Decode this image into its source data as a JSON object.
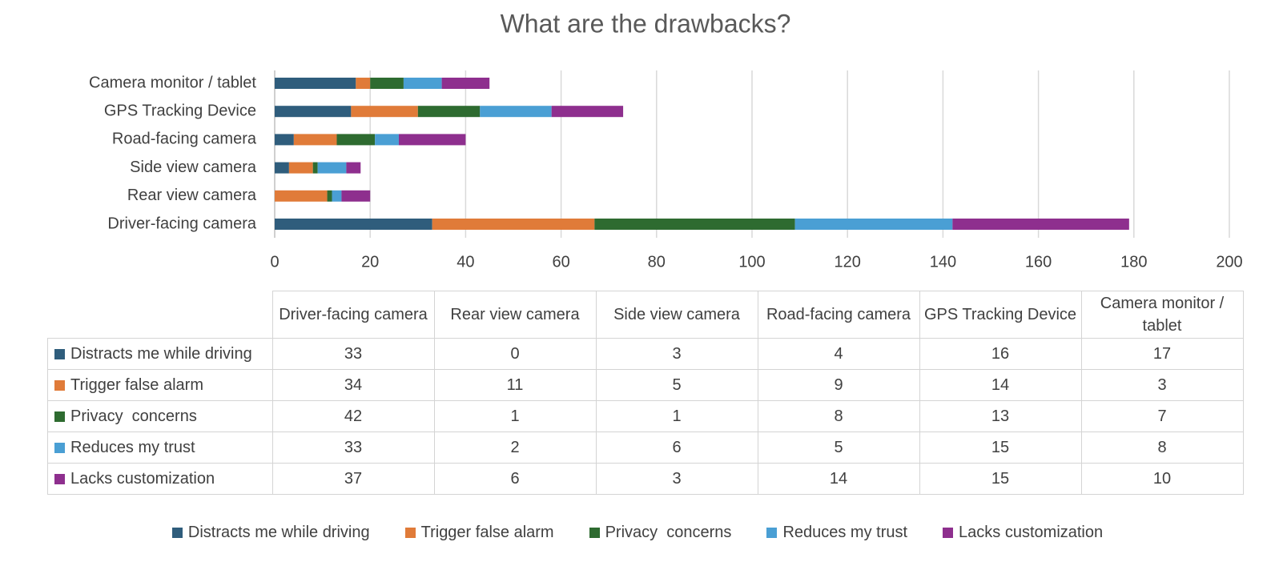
{
  "chart_data": {
    "type": "stacked-bar-horizontal",
    "title": "What are the drawbacks?",
    "categories": [
      "Driver-facing camera",
      "Rear view camera",
      "Side view camera",
      "Road-facing camera",
      "GPS Tracking Device",
      "Camera monitor / tablet"
    ],
    "series": [
      {
        "name": "Distracts me while driving",
        "color": "#2f5d7c",
        "values": [
          33,
          0,
          3,
          4,
          16,
          17
        ]
      },
      {
        "name": "Trigger false alarm",
        "color": "#e07b39",
        "values": [
          34,
          11,
          5,
          9,
          14,
          3
        ]
      },
      {
        "name": "Privacy  concerns",
        "color": "#2e6b30",
        "values": [
          42,
          1,
          1,
          8,
          13,
          7
        ]
      },
      {
        "name": "Reduces my trust",
        "color": "#4a9fd4",
        "values": [
          33,
          2,
          6,
          5,
          15,
          8
        ]
      },
      {
        "name": "Lacks customization",
        "color": "#8e2f8e",
        "values": [
          37,
          6,
          3,
          14,
          15,
          10
        ]
      }
    ],
    "xlim": [
      0,
      200
    ],
    "xticks": [
      0,
      20,
      40,
      60,
      80,
      100,
      120,
      140,
      160,
      180,
      200
    ],
    "grid": true,
    "data_table": true,
    "legend": "bottom"
  }
}
